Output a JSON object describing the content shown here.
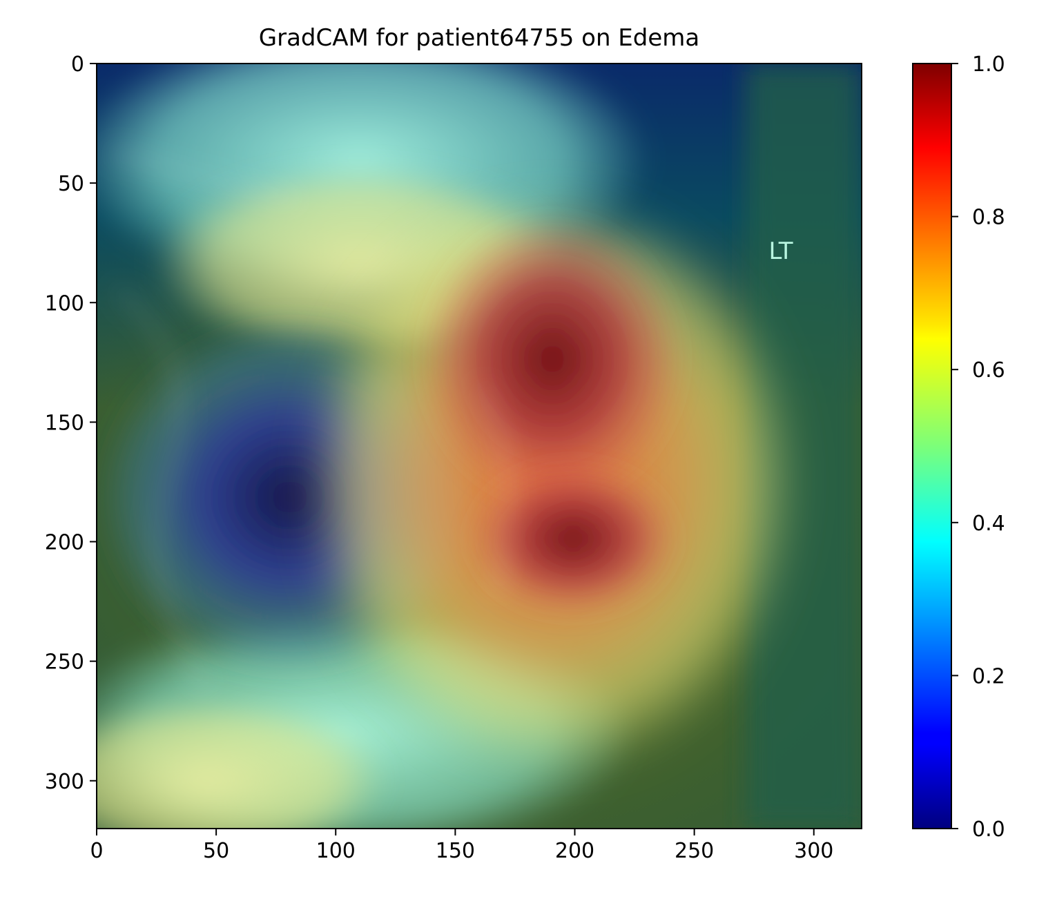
{
  "chart_data": {
    "type": "heatmap",
    "title": "GradCAM for patient64755 on Edema",
    "image_extent": {
      "x": [
        0,
        320
      ],
      "y": [
        320,
        0
      ]
    },
    "x_ticks": [
      0,
      50,
      100,
      150,
      200,
      250,
      300
    ],
    "y_ticks": [
      0,
      50,
      100,
      150,
      200,
      250,
      300
    ],
    "x_tick_labels": [
      "0",
      "50",
      "100",
      "150",
      "200",
      "250",
      "300"
    ],
    "y_tick_labels": [
      "0",
      "50",
      "100",
      "150",
      "200",
      "250",
      "300"
    ],
    "colorbar": {
      "colormap": "jet",
      "range": [
        0.0,
        1.0
      ],
      "ticks": [
        0.0,
        0.2,
        0.4,
        0.6,
        0.8,
        1.0
      ],
      "tick_labels": [
        "0.0",
        "0.2",
        "0.4",
        "0.6",
        "0.8",
        "1.0"
      ]
    },
    "annotation": {
      "text": "LT",
      "x": 286,
      "y": 78,
      "color": "#b8f5e0"
    },
    "activation_blobs": [
      {
        "cx": 210,
        "cy": 130,
        "rx": 58,
        "ry": 68,
        "value": 1.0
      },
      {
        "cx": 200,
        "cy": 195,
        "rx": 42,
        "ry": 32,
        "value": 0.95
      },
      {
        "cx": 190,
        "cy": 175,
        "rx": 95,
        "ry": 110,
        "value": 0.8
      },
      {
        "cx": 70,
        "cy": 190,
        "rx": 50,
        "ry": 45,
        "value": 0.0
      }
    ]
  }
}
